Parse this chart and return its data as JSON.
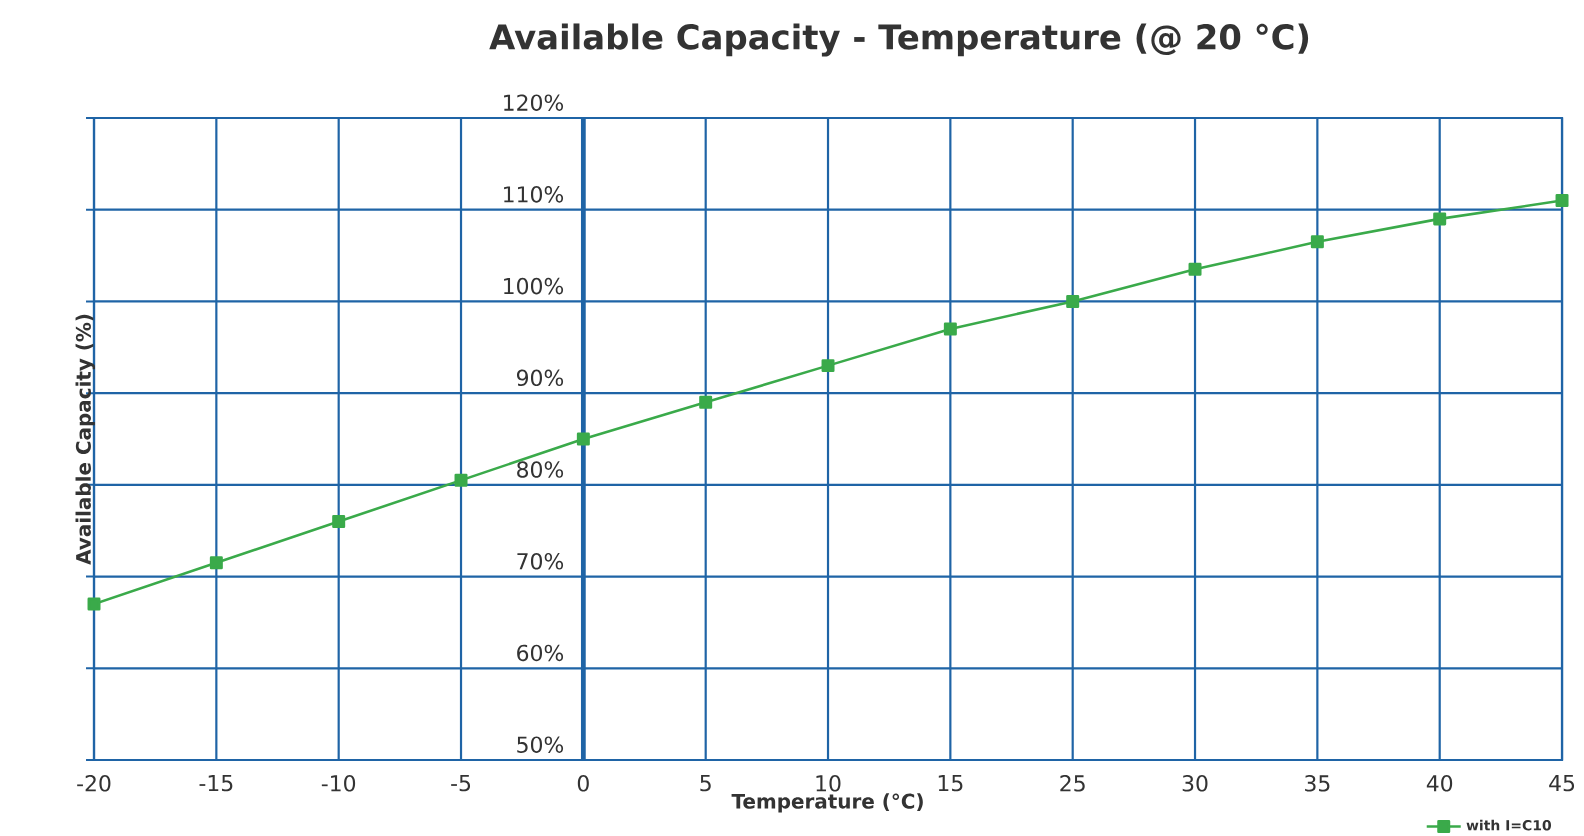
{
  "chart_data": {
    "type": "line",
    "title": "Available Capacity - Temperature (@ 20 °C)",
    "xlabel": "Temperature (°C)",
    "ylabel": "Available Capacity (%)",
    "categories": [
      "-20",
      "-15",
      "-10",
      "-5",
      "0",
      "5",
      "10",
      "15",
      "25",
      "30",
      "35",
      "40",
      "45"
    ],
    "series": [
      {
        "name": "with I=C10",
        "color": "#3aaa4a",
        "values": [
          67,
          71.5,
          76,
          80.5,
          85,
          89,
          93,
          97,
          100,
          103.5,
          106.5,
          109,
          111
        ]
      }
    ],
    "ylim": [
      50,
      120
    ],
    "yticks": [
      {
        "value": 50,
        "label": "50%"
      },
      {
        "value": 60,
        "label": "60%"
      },
      {
        "value": 70,
        "label": "70%"
      },
      {
        "value": 80,
        "label": "80%"
      },
      {
        "value": 90,
        "label": "90%"
      },
      {
        "value": 100,
        "label": "100%"
      },
      {
        "value": 110,
        "label": "110%"
      },
      {
        "value": 120,
        "label": "120%"
      }
    ],
    "grid": true,
    "legend": "bottom right",
    "marker": "square",
    "line_style": "solid"
  }
}
